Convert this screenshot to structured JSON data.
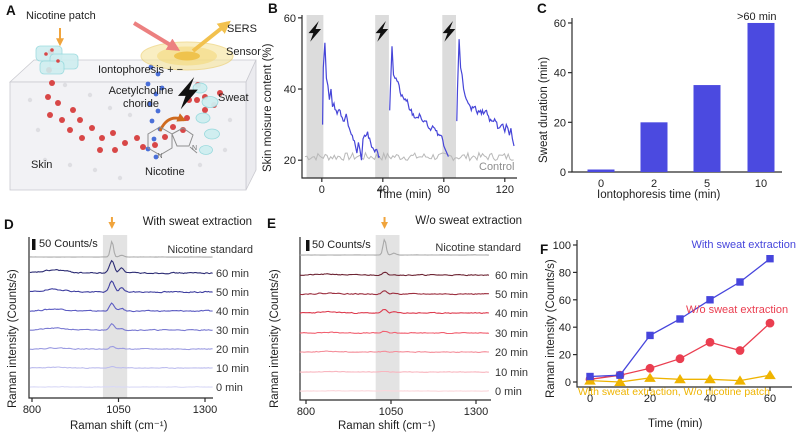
{
  "panel_labels": {
    "a": "A",
    "b": "B",
    "c": "C",
    "d": "D",
    "e": "E",
    "f": "F"
  },
  "illustration": {
    "nicotine_patch": "Nicotine patch",
    "sers": "SERS",
    "sensor": "Sensor",
    "iontophoresis": "Iontophoresis + −",
    "acetylcholine_line1": "Acetylcholine",
    "acetylcholine_line2": "choride",
    "sweat": "Sweat",
    "skin": "Skin",
    "nicotine": "Nicotine"
  },
  "colors": {
    "accent_blue": "#4645dc",
    "accent_red": "#ea3e50",
    "accent_yellow": "#efb400",
    "control_gray": "#8f8f8f",
    "bar_blue": "#4b4ae0",
    "band_gray": "#dcdcdc",
    "arrow_orange": "#f0a43c"
  },
  "chart_data": [
    {
      "panel": "B",
      "type": "line",
      "ylabel": "Skin moisure content (%)",
      "xlabel": "Time (min)",
      "yticks": [
        20,
        40,
        60
      ],
      "xticks": [
        0,
        40,
        80,
        120
      ],
      "ylim": [
        15,
        60.8
      ],
      "xlim": [
        -13,
        128
      ],
      "iontophoresis_bands_min": [
        [
          -10,
          1
        ],
        [
          35,
          44
        ],
        [
          79,
          88
        ]
      ],
      "series": [
        {
          "color": "#4645d8",
          "segments": [
            [
              [
                0.5,
                30
              ],
              [
                1,
                46
              ],
              [
                2,
                53
              ],
              [
                3,
                43
              ],
              [
                4,
                41
              ],
              [
                5,
                37
              ],
              [
                6,
                40
              ],
              [
                7,
                35
              ],
              [
                8,
                36
              ],
              [
                10,
                33
              ],
              [
                12,
                34
              ],
              [
                14,
                31
              ],
              [
                16,
                33
              ],
              [
                18,
                29
              ],
              [
                20,
                27
              ],
              [
                22,
                24
              ],
              [
                23,
                22
              ],
              [
                24,
                25
              ],
              [
                25,
                23
              ],
              [
                26,
                20
              ],
              [
                27,
                26
              ],
              [
                28,
                27
              ],
              [
                30,
                28
              ],
              [
                32,
                25
              ],
              [
                34,
                23
              ],
              [
                36,
                23
              ],
              [
                38,
                21
              ]
            ],
            [
              [
                44.5,
                34
              ],
              [
                45,
                40
              ],
              [
                46,
                52
              ],
              [
                47,
                44
              ],
              [
                48,
                43
              ],
              [
                50,
                42
              ],
              [
                52,
                38
              ],
              [
                54,
                37
              ],
              [
                56,
                37
              ],
              [
                58,
                34
              ],
              [
                60,
                33
              ],
              [
                62,
                32
              ],
              [
                64,
                33
              ],
              [
                66,
                31
              ],
              [
                68,
                31
              ],
              [
                70,
                29
              ],
              [
                72,
                29
              ],
              [
                74,
                29
              ],
              [
                76,
                27
              ],
              [
                78,
                27
              ],
              [
                80,
                24
              ],
              [
                81,
                23
              ],
              [
                82,
                22
              ],
              [
                83,
                21
              ]
            ],
            [
              [
                88.5,
                31
              ],
              [
                89,
                40
              ],
              [
                90,
                54
              ],
              [
                91,
                46
              ],
              [
                92,
                44
              ],
              [
                93,
                40
              ],
              [
                94,
                38
              ],
              [
                96,
                36
              ],
              [
                98,
                34
              ],
              [
                100,
                35
              ],
              [
                102,
                33
              ],
              [
                104,
                34
              ],
              [
                106,
                33
              ],
              [
                108,
                34
              ],
              [
                110,
                31
              ],
              [
                112,
                31
              ],
              [
                114,
                31
              ],
              [
                116,
                29
              ],
              [
                118,
                30
              ],
              [
                120,
                28
              ],
              [
                121,
                30
              ],
              [
                122,
                29
              ],
              [
                123,
                27
              ],
              [
                124,
                29
              ],
              [
                125,
                26
              ],
              [
                126,
                24
              ]
            ]
          ]
        },
        {
          "name": "Control",
          "color": "#b8b8b8",
          "baseline": 21,
          "noise": 1.1,
          "t_range": [
            -11,
            127
          ]
        }
      ]
    },
    {
      "panel": "C",
      "type": "bar",
      "ylabel": "Sweat duration (min)",
      "xlabel": "Iontophoresis time (min)",
      "categories": [
        "0",
        "2",
        "5",
        "10"
      ],
      "values": [
        1,
        20,
        35,
        60
      ],
      "yticks": [
        0,
        20,
        40,
        60
      ],
      "ylim": [
        0,
        62
      ],
      "annotation": ">60 min",
      "bar_color": "#4b4ae0"
    },
    {
      "panel": "D",
      "type": "spectra",
      "title": "With sweat extraction",
      "ylabel": "Raman intensity (Counts/s)",
      "xlabel": "Raman shift (cm⁻¹)",
      "xticks": [
        800,
        1050,
        1300
      ],
      "xlim": [
        800,
        1300
      ],
      "scale_bar_label": "50 Counts/s",
      "scale_bar_counts": 50,
      "highlight_band_cm": [
        1005,
        1075
      ],
      "arrow_cm": 1031,
      "traces": [
        {
          "label": "Nicotine standard",
          "color": "#a9a9a9",
          "peak_870": 0,
          "peak_1030": 78,
          "peak_1060": 9,
          "noise": 1,
          "sharp": true
        },
        {
          "label": "60 min",
          "color": "#2c2c74",
          "peak_870": 15,
          "peak_1030": 62,
          "peak_1060": 28,
          "noise": 5
        },
        {
          "label": "50 min",
          "color": "#3f3fa0",
          "peak_870": 13,
          "peak_1030": 55,
          "peak_1060": 23,
          "noise": 5
        },
        {
          "label": "40 min",
          "color": "#5b5bc2",
          "peak_870": 10,
          "peak_1030": 38,
          "peak_1060": 13,
          "noise": 4.5
        },
        {
          "label": "30 min",
          "color": "#7a7ad2",
          "peak_870": 9,
          "peak_1030": 33,
          "peak_1060": 9,
          "noise": 4
        },
        {
          "label": "20 min",
          "color": "#9c9ce2",
          "peak_870": 5,
          "peak_1030": 13,
          "peak_1060": 4,
          "noise": 3.5
        },
        {
          "label": "10 min",
          "color": "#bdbdee",
          "peak_870": 3,
          "peak_1030": 6,
          "peak_1060": 2,
          "noise": 3
        },
        {
          "label": "0 min",
          "color": "#d9d9f6",
          "peak_870": 1,
          "peak_1030": 2,
          "peak_1060": 0,
          "noise": 2
        }
      ]
    },
    {
      "panel": "E",
      "type": "spectra",
      "title": "W/o sweat extraction",
      "ylabel": "Raman intensity (Counts/s)",
      "xlabel": "Raman shift (cm⁻¹)",
      "xticks": [
        800,
        1050,
        1300
      ],
      "xlim": [
        800,
        1300
      ],
      "scale_bar_label": "50 Counts/s",
      "scale_bar_counts": 50,
      "highlight_band_cm": [
        1005,
        1075
      ],
      "arrow_cm": 1031,
      "traces": [
        {
          "label": "Nicotine standard",
          "color": "#a9a9a9",
          "peak_870": 0,
          "peak_1030": 78,
          "peak_1060": 9,
          "noise": 1,
          "sharp": true
        },
        {
          "label": "60 min",
          "color": "#6d2433",
          "peak_870": 4,
          "peak_1030": 13,
          "peak_1060": 4,
          "noise": 4
        },
        {
          "label": "50 min",
          "color": "#9c2f3f",
          "peak_870": 4,
          "peak_1030": 15,
          "peak_1060": 4,
          "noise": 4
        },
        {
          "label": "40 min",
          "color": "#dd3b4e",
          "peak_870": 5,
          "peak_1030": 17,
          "peak_1060": 6,
          "noise": 4
        },
        {
          "label": "30 min",
          "color": "#f16070",
          "peak_870": 3,
          "peak_1030": 8,
          "peak_1060": 2,
          "noise": 3.5
        },
        {
          "label": "20 min",
          "color": "#f48e9a",
          "peak_870": 3,
          "peak_1030": 5,
          "peak_1060": 1,
          "noise": 3
        },
        {
          "label": "10 min",
          "color": "#f8b6bf",
          "peak_870": 2,
          "peak_1030": 4,
          "peak_1060": 1,
          "noise": 2.5
        },
        {
          "label": "0 min",
          "color": "#fbd6db",
          "peak_870": 1,
          "peak_1030": 2,
          "peak_1060": 0,
          "noise": 2
        }
      ]
    },
    {
      "panel": "F",
      "type": "scatter-line",
      "ylabel": "Raman intensity (Counts/s)",
      "xlabel": "Time (min)",
      "x": [
        0,
        10,
        20,
        30,
        40,
        50,
        60
      ],
      "yticks": [
        0,
        20,
        40,
        60,
        80,
        100
      ],
      "xticks": [
        0,
        20,
        40,
        60
      ],
      "ylim": [
        0,
        100
      ],
      "series": [
        {
          "name": "With sweat extraction",
          "marker": "square",
          "color": "#4645dc",
          "values": [
            4,
            5,
            34,
            46,
            60,
            73,
            90
          ]
        },
        {
          "name": "W/o sweat extraction",
          "marker": "circle",
          "color": "#ea3e50",
          "values": [
            2,
            5,
            10,
            17,
            29,
            23,
            43
          ]
        },
        {
          "name": "With sweat extraction, W/o nicotine patch",
          "marker": "triangle",
          "color": "#efb400",
          "values": [
            1,
            0,
            3,
            2,
            2,
            1,
            5
          ]
        }
      ]
    }
  ]
}
